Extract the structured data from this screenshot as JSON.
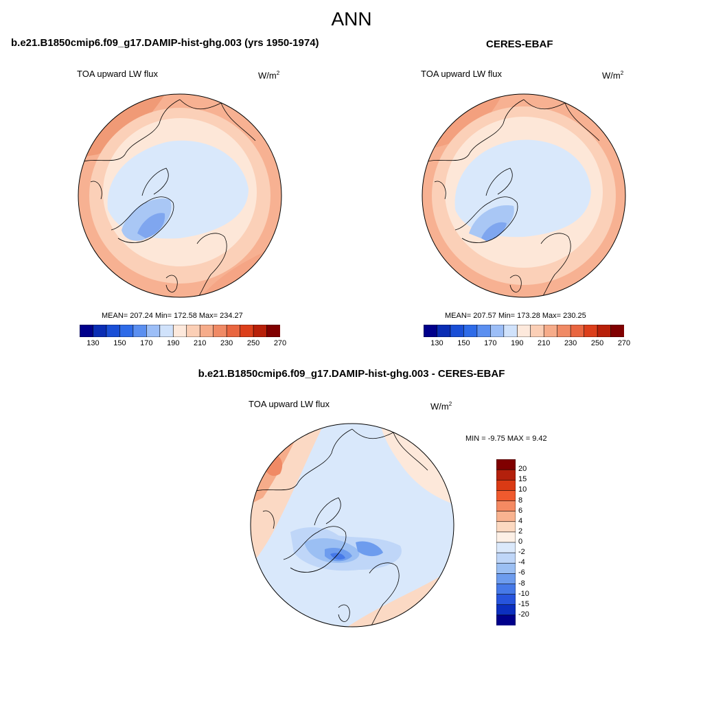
{
  "title": "ANN",
  "panels": [
    {
      "title": "b.e21.B1850cmip6.f09_g17.DAMIP-hist-ghg.003 (yrs 1950-1974)",
      "left_label": "TOA upward LW flux",
      "units": "W/m",
      "units_sup": "2",
      "stats": {
        "mean": "207.24",
        "min": "172.58",
        "max": "234.27"
      },
      "stats_line": "MEAN= 207.24  Min= 172.58  Max= 234.27"
    },
    {
      "title": "CERES-EBAF",
      "left_label": "TOA upward LW flux",
      "units": "W/m",
      "units_sup": "2",
      "stats": {
        "mean": "207.57",
        "min": "173.28",
        "max": "230.25"
      },
      "stats_line": "MEAN= 207.57  Min= 173.28  Max= 230.25"
    },
    {
      "title": "b.e21.B1850cmip6.f09_g17.DAMIP-hist-ghg.003 - CERES-EBAF",
      "left_label": "TOA upward LW flux",
      "units": "W/m",
      "units_sup": "2",
      "stats": {
        "min": "-9.75",
        "max": "9.42"
      },
      "stats_line": "MIN =  -9.75 MAX =   9.42"
    }
  ],
  "colorbar_abs": {
    "colors": [
      "#00008b",
      "#0a2db4",
      "#1a4fd6",
      "#2e6be8",
      "#5b8ff0",
      "#9cbef7",
      "#d0e2fb",
      "#fde9dc",
      "#fbcfb6",
      "#f6ac8a",
      "#f08a65",
      "#e96640",
      "#dc3f1b",
      "#b82009",
      "#800000"
    ],
    "tick_labels": [
      "130",
      "150",
      "170",
      "190",
      "210",
      "230",
      "250",
      "270"
    ]
  },
  "colorbar_diff": {
    "colors": [
      "#800000",
      "#b3200c",
      "#da3a14",
      "#f05a2e",
      "#f58a62",
      "#f9b390",
      "#fcd9c1",
      "#fdf0e6",
      "#dbe9fb",
      "#bfd6f8",
      "#9bbff3",
      "#6d9cee",
      "#4679e8",
      "#2754dd",
      "#0c2fbf",
      "#00008b"
    ],
    "tick_labels": [
      "20",
      "15",
      "10",
      "8",
      "6",
      "4",
      "2",
      "0",
      "-2",
      "-4",
      "-6",
      "-8",
      "-10",
      "-15",
      "-20"
    ]
  }
}
